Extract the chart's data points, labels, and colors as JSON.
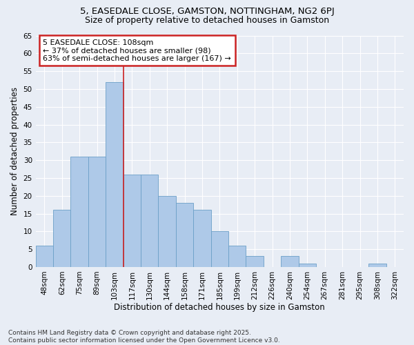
{
  "title1": "5, EASEDALE CLOSE, GAMSTON, NOTTINGHAM, NG2 6PJ",
  "title2": "Size of property relative to detached houses in Gamston",
  "xlabel": "Distribution of detached houses by size in Gamston",
  "ylabel": "Number of detached properties",
  "categories": [
    "48sqm",
    "62sqm",
    "75sqm",
    "89sqm",
    "103sqm",
    "117sqm",
    "130sqm",
    "144sqm",
    "158sqm",
    "171sqm",
    "185sqm",
    "199sqm",
    "212sqm",
    "226sqm",
    "240sqm",
    "254sqm",
    "267sqm",
    "281sqm",
    "295sqm",
    "308sqm",
    "322sqm"
  ],
  "values": [
    6,
    16,
    31,
    31,
    52,
    26,
    26,
    20,
    18,
    16,
    10,
    6,
    3,
    0,
    3,
    1,
    0,
    0,
    0,
    1,
    0
  ],
  "bar_color": "#aec9e8",
  "bar_edge_color": "#6b9fc7",
  "background_color": "#e8edf5",
  "grid_color": "#ffffff",
  "annotation_title": "5 EASEDALE CLOSE: 108sqm",
  "annotation_line1": "← 37% of detached houses are smaller (98)",
  "annotation_line2": "63% of semi-detached houses are larger (167) →",
  "annotation_box_color": "#ffffff",
  "annotation_box_edge_color": "#cc2222",
  "vline_color": "#cc2222",
  "vline_x": 4.5,
  "ylim": [
    0,
    65
  ],
  "yticks": [
    0,
    5,
    10,
    15,
    20,
    25,
    30,
    35,
    40,
    45,
    50,
    55,
    60,
    65
  ],
  "footnote1": "Contains HM Land Registry data © Crown copyright and database right 2025.",
  "footnote2": "Contains public sector information licensed under the Open Government Licence v3.0.",
  "title1_fontsize": 9.5,
  "title2_fontsize": 9,
  "tick_fontsize": 7.5,
  "label_fontsize": 8.5,
  "annotation_fontsize": 8,
  "footnote_fontsize": 6.5
}
